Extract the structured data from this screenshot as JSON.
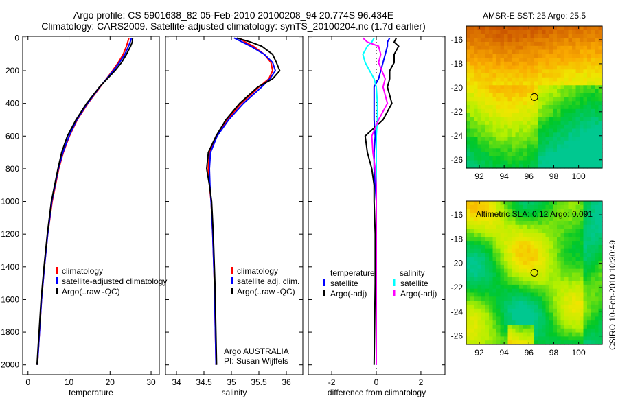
{
  "title": {
    "line1": "Argo profile: CS 5901638_82 05-Feb-2010 20100208_94 20.774S 96.434E",
    "line2": "Climatology: CARS2009. Satellite-adjusted climatology: synTS_20100204.nc (1.7d earlier)"
  },
  "credit": "CSIRO 10-Feb-2010 10:30:49",
  "colors": {
    "clim": "#ff0000",
    "sat": "#0000ff",
    "argo": "#000000",
    "sal_sat": "#00ffff",
    "sal_argo": "#ff00ff"
  },
  "chart_data": [
    {
      "type": "line",
      "id": "temperature",
      "xlabel": "temperature",
      "ylabel": "",
      "xlim": [
        -1.3,
        32
      ],
      "ylim": [
        2060,
        -10
      ],
      "xticks": [
        "0",
        "10",
        "20",
        "30"
      ],
      "xtick_values": [
        0,
        10,
        20,
        30
      ],
      "yticks": [
        "0",
        "200",
        "400",
        "600",
        "800",
        "1000",
        "1200",
        "1400",
        "1600",
        "1800",
        "2000"
      ],
      "ytick_values": [
        0,
        200,
        400,
        600,
        800,
        1000,
        1200,
        1400,
        1600,
        1800,
        2000
      ],
      "legend": [
        "climatology",
        "satellite-adjusted climatology",
        "Argo(..raw -QC)"
      ],
      "legend_placement": "lower-right",
      "depth": [
        0,
        25,
        50,
        100,
        150,
        200,
        300,
        400,
        500,
        600,
        700,
        800,
        1000,
        1200,
        1400,
        1600,
        1800,
        2000
      ],
      "series": [
        {
          "name": "climatology",
          "color": "clim",
          "values": [
            24.6,
            24.3,
            24.0,
            23.2,
            22.0,
            20.6,
            17.6,
            14.6,
            12.0,
            10.1,
            8.6,
            7.5,
            5.9,
            4.8,
            4.0,
            3.3,
            2.8,
            2.3
          ]
        },
        {
          "name": "satellite-adjusted climatology",
          "color": "sat",
          "values": [
            25.2,
            24.9,
            24.5,
            23.6,
            22.3,
            20.8,
            17.5,
            14.5,
            11.9,
            10.0,
            8.5,
            7.4,
            5.8,
            4.8,
            4.0,
            3.3,
            2.8,
            2.3
          ]
        },
        {
          "name": "Argo(..raw -QC)",
          "color": "argo",
          "values": [
            25.5,
            25.4,
            25.0,
            24.0,
            22.8,
            21.2,
            17.4,
            14.3,
            11.7,
            9.6,
            8.2,
            7.3,
            5.7,
            4.7,
            3.9,
            3.2,
            2.7,
            2.2
          ]
        }
      ]
    },
    {
      "type": "line",
      "id": "salinity",
      "xlabel": "salinity",
      "xlim": [
        33.8,
        36.3
      ],
      "ylim": [
        2060,
        -10
      ],
      "xticks": [
        "34",
        "34.5",
        "35",
        "35.5",
        "36"
      ],
      "xtick_values": [
        34,
        34.5,
        35,
        35.5,
        36
      ],
      "legend": [
        "climatology",
        "satellite adj. clim.",
        "Argo(..raw -QC)"
      ],
      "legend_placement": "lower-right",
      "annotation": [
        "Argo AUSTRALIA",
        "PI: Susan Wijffels"
      ],
      "depth": [
        0,
        25,
        50,
        100,
        150,
        200,
        250,
        300,
        400,
        500,
        600,
        700,
        800,
        900,
        1000,
        1200,
        1500,
        2000
      ],
      "series": [
        {
          "name": "climatology",
          "color": "clim",
          "values": [
            35.15,
            35.25,
            35.4,
            35.6,
            35.72,
            35.75,
            35.68,
            35.5,
            35.18,
            34.92,
            34.72,
            34.6,
            34.58,
            34.6,
            34.63,
            34.66,
            34.69,
            34.72
          ]
        },
        {
          "name": "satellite adj. clim.",
          "color": "sat",
          "values": [
            35.05,
            35.2,
            35.35,
            35.6,
            35.75,
            35.8,
            35.7,
            35.55,
            35.22,
            34.95,
            34.74,
            34.62,
            34.6,
            34.61,
            34.63,
            34.66,
            34.69,
            34.72
          ]
        },
        {
          "name": "Argo(..raw -QC)",
          "color": "argo",
          "values": [
            35.1,
            35.35,
            35.55,
            35.75,
            35.82,
            35.88,
            35.75,
            35.48,
            35.15,
            34.9,
            34.72,
            34.58,
            34.55,
            34.6,
            34.64,
            34.67,
            34.7,
            34.73
          ]
        }
      ]
    },
    {
      "type": "line",
      "id": "difference",
      "xlabel": "difference from climatology",
      "xlim": [
        -3.05,
        3.08
      ],
      "ylim": [
        2060,
        -10
      ],
      "xticks": [
        "-2",
        "0",
        "2"
      ],
      "xtick_values": [
        -2,
        0,
        2
      ],
      "legend_headers": [
        "temperature",
        "salinity"
      ],
      "legend": [
        "satellite",
        "Argo(-adj)",
        "satellite",
        "Argo(-adj)"
      ],
      "legend_placement": "lower-center",
      "depth": [
        0,
        25,
        50,
        100,
        150,
        200,
        250,
        300,
        400,
        500,
        600,
        700,
        800,
        900,
        1000,
        1200,
        1500,
        2000
      ],
      "series": [
        {
          "name": "temperature satellite",
          "color": "sat",
          "values": [
            0.6,
            0.5,
            0.5,
            0.4,
            0.3,
            0.2,
            0.1,
            -0.1,
            -0.1,
            -0.1,
            -0.05,
            -0.1,
            -0.1,
            -0.05,
            0,
            0,
            0,
            0
          ]
        },
        {
          "name": "temperature Argo(-adj)",
          "color": "argo",
          "values": [
            0.9,
            0.8,
            1.0,
            0.8,
            0.8,
            0.6,
            0.6,
            0.5,
            0.7,
            0.3,
            -0.5,
            -0.4,
            -0.2,
            -0.1,
            -0.1,
            -0.05,
            -0.05,
            -0.1
          ]
        },
        {
          "name": "salinity satellite",
          "color": "sal_sat",
          "values": [
            -0.1,
            -0.2,
            -0.4,
            -0.6,
            -0.5,
            -0.3,
            -0.1,
            0,
            0.05,
            0.05,
            0,
            0,
            0,
            0,
            0,
            0,
            0,
            0
          ]
        },
        {
          "name": "salinity Argo(-adj)",
          "color": "sal_argo",
          "values": [
            -0.6,
            -0.4,
            0.1,
            0.2,
            0.1,
            0.25,
            0.4,
            0.3,
            0.5,
            0.1,
            -0.2,
            -0.15,
            -0.05,
            0,
            0,
            0,
            0,
            0
          ]
        }
      ]
    },
    {
      "type": "heatmap",
      "id": "sst-map",
      "title": "AMSR-E SST: 25 Argo: 25.5",
      "xlim": [
        90.95,
        101.9
      ],
      "ylim": [
        -26.7,
        -14.86
      ],
      "xticks": [
        "92",
        "94",
        "96",
        "98",
        "100"
      ],
      "xtick_values": [
        92,
        94,
        96,
        98,
        100
      ],
      "yticks": [
        "-16",
        "-18",
        "-20",
        "-22",
        "-24",
        "-26"
      ],
      "ytick_values": [
        -16,
        -18,
        -20,
        -22,
        -24,
        -26
      ],
      "marker": {
        "lon": 96.434,
        "lat": -20.774
      }
    },
    {
      "type": "heatmap",
      "id": "sla-map",
      "title": "Altimetric SLA: 0.12 Argo: 0.091",
      "xlim": [
        90.95,
        101.9
      ],
      "ylim": [
        -26.7,
        -14.86
      ],
      "xticks": [
        "92",
        "94",
        "96",
        "98",
        "100"
      ],
      "xtick_values": [
        92,
        94,
        96,
        98,
        100
      ],
      "yticks": [
        "-16",
        "-18",
        "-20",
        "-22",
        "-24",
        "-26"
      ],
      "ytick_values": [
        -16,
        -18,
        -20,
        -22,
        -24,
        -26
      ],
      "marker": {
        "lon": 96.434,
        "lat": -20.774
      }
    }
  ]
}
